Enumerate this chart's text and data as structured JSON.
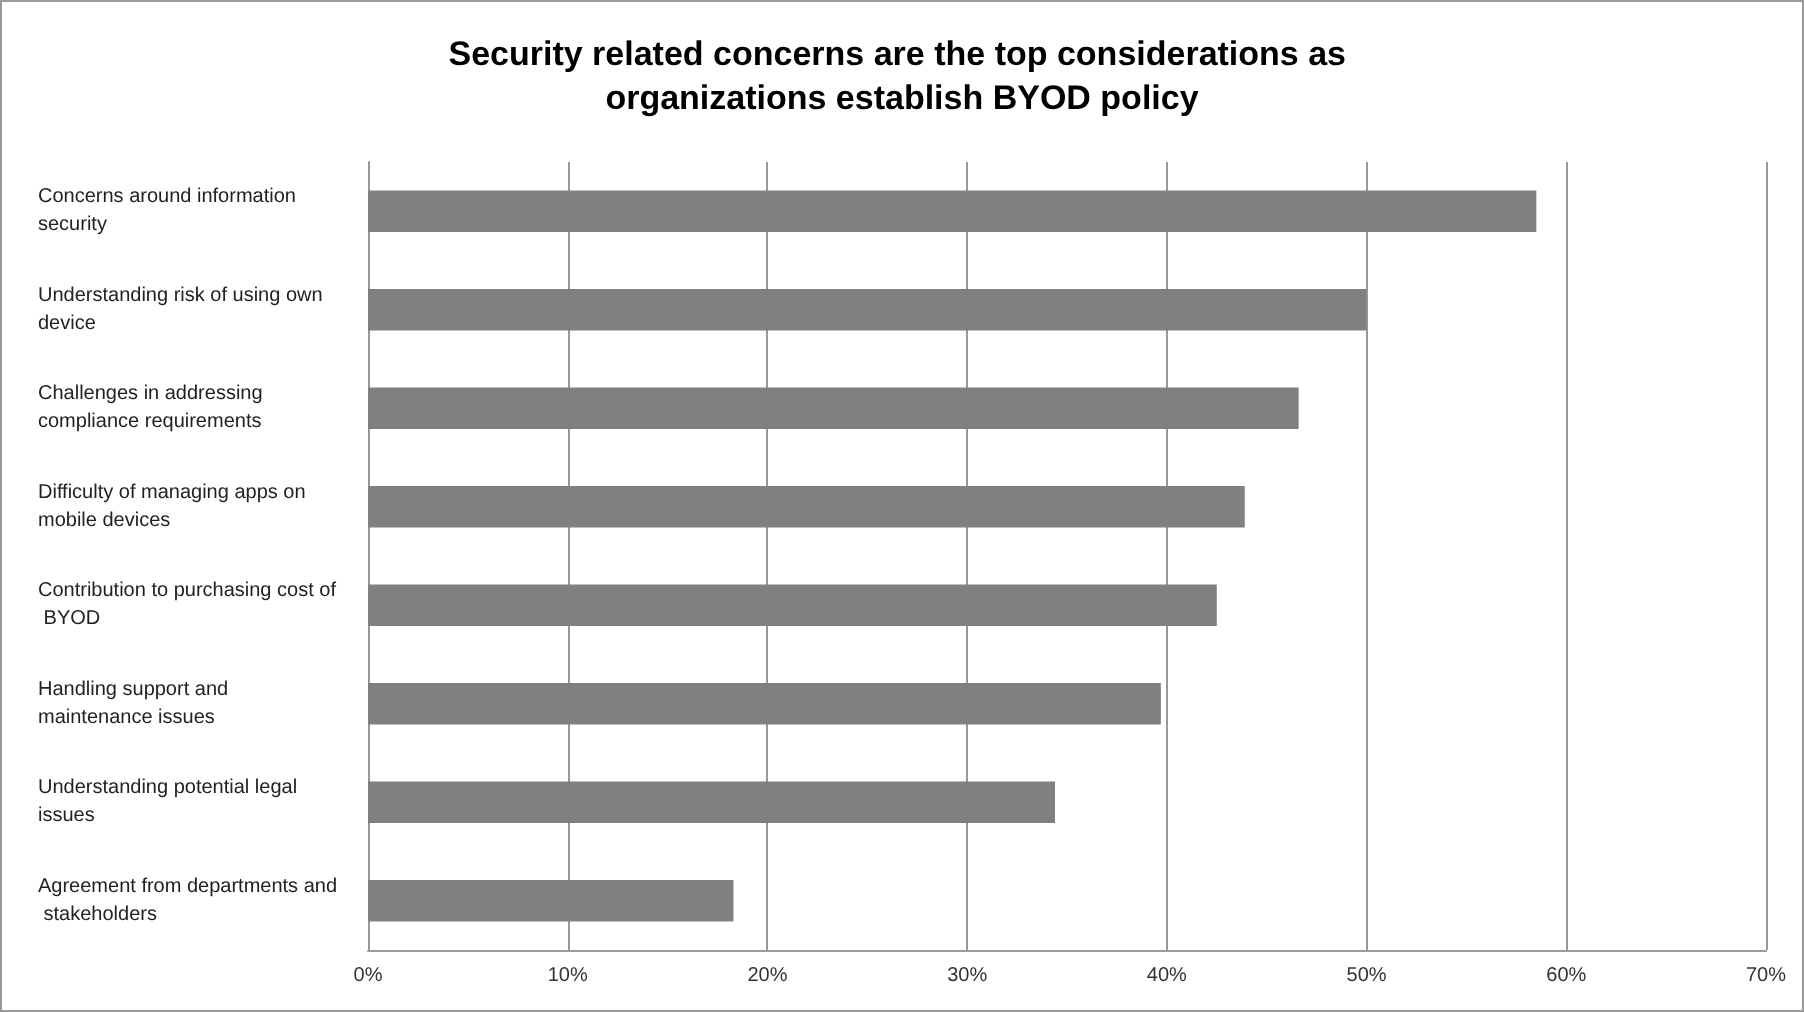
{
  "chart_data": {
    "type": "bar",
    "orientation": "horizontal",
    "title": "Security related concerns are the top considerations as organizations establish BYOD policy",
    "categories": [
      "Concerns around information security",
      "Understanding risk of using own device",
      "Challenges in addressing compliance requirements",
      "Difficulty of managing apps on mobile devices",
      "Contribution to purchasing cost of BYOD",
      "Handling support and maintenance issues",
      "Understanding potential legal issues",
      "Agreement from departments and stakeholders"
    ],
    "values": [
      58.5,
      50,
      46.6,
      43.9,
      42.5,
      39.7,
      34.4,
      18.3
    ],
    "color": "#808080",
    "xlim": [
      0,
      70
    ],
    "xticks": [
      {
        "value": 0,
        "label": "0%"
      },
      {
        "value": 10,
        "label": "10%"
      },
      {
        "value": 20,
        "label": "20%"
      },
      {
        "value": 30,
        "label": "30%"
      },
      {
        "value": 40,
        "label": "40%"
      },
      {
        "value": 50,
        "label": "50%"
      },
      {
        "value": 60,
        "label": "60%"
      },
      {
        "value": 70,
        "label": "70%"
      }
    ],
    "grid": "x"
  }
}
